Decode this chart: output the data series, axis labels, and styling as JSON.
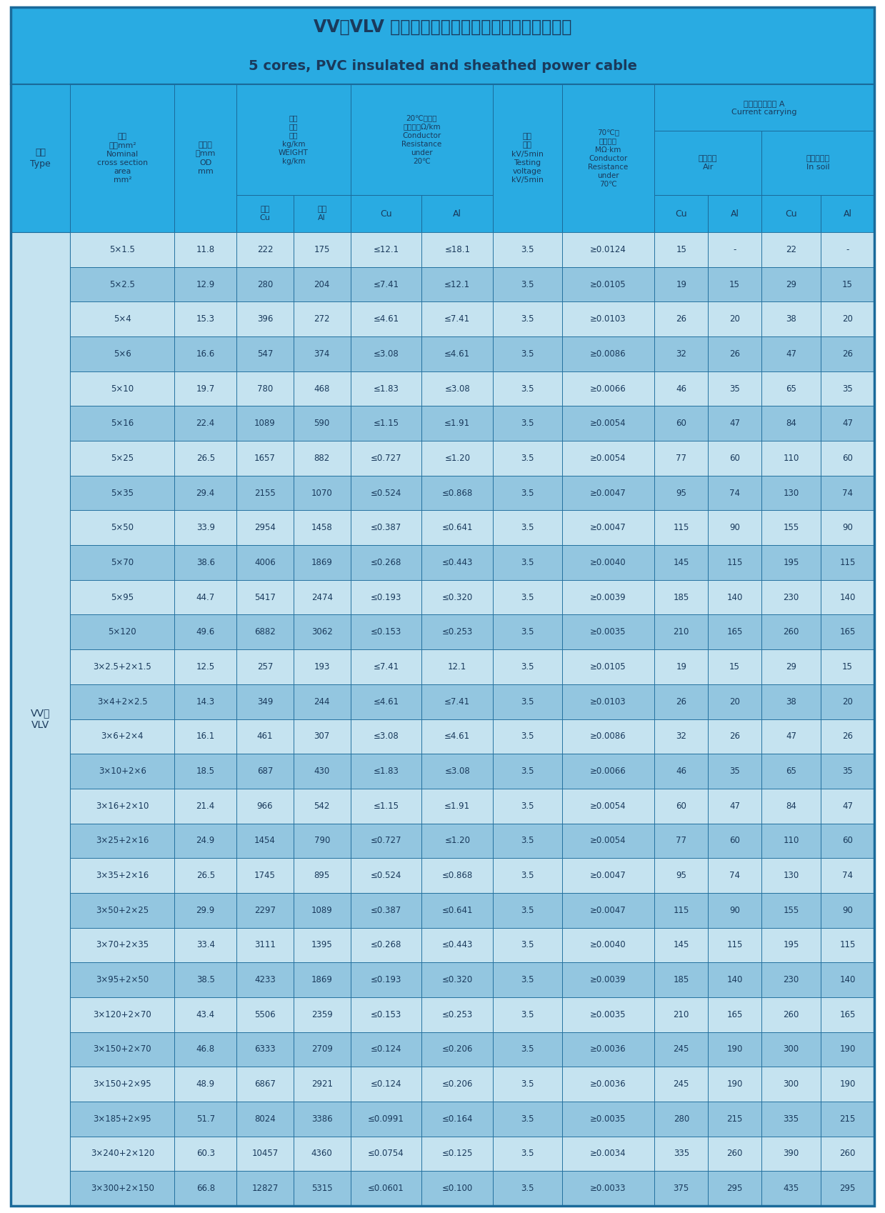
{
  "title_cn": "VV、VLV 五芯聚氯乙烯绣缘聚氯乙烯护套电力电缆",
  "title_en": "5 cores, PVC insulated and sheathed power cable",
  "header_bg": "#29ABE2",
  "row_bg_dark": "#93C6E0",
  "row_bg_light": "#C5E3F0",
  "border_color": "#1A6A9A",
  "text_color_dark": "#1A3A5C",
  "rows": [
    [
      "5×1.5",
      "11.8",
      "222",
      "175",
      "≤12.1",
      "≤18.1",
      "3.5",
      "≥0.0124",
      "15",
      "-",
      "22",
      "-"
    ],
    [
      "5×2.5",
      "12.9",
      "280",
      "204",
      "≤7.41",
      "≤12.1",
      "3.5",
      "≥0.0105",
      "19",
      "15",
      "29",
      "15"
    ],
    [
      "5×4",
      "15.3",
      "396",
      "272",
      "≤4.61",
      "≤7.41",
      "3.5",
      "≥0.0103",
      "26",
      "20",
      "38",
      "20"
    ],
    [
      "5×6",
      "16.6",
      "547",
      "374",
      "≤3.08",
      "≤4.61",
      "3.5",
      "≥0.0086",
      "32",
      "26",
      "47",
      "26"
    ],
    [
      "5×10",
      "19.7",
      "780",
      "468",
      "≤1.83",
      "≤3.08",
      "3.5",
      "≥0.0066",
      "46",
      "35",
      "65",
      "35"
    ],
    [
      "5×16",
      "22.4",
      "1089",
      "590",
      "≤1.15",
      "≤1.91",
      "3.5",
      "≥0.0054",
      "60",
      "47",
      "84",
      "47"
    ],
    [
      "5×25",
      "26.5",
      "1657",
      "882",
      "≤0.727",
      "≤1.20",
      "3.5",
      "≥0.0054",
      "77",
      "60",
      "110",
      "60"
    ],
    [
      "5×35",
      "29.4",
      "2155",
      "1070",
      "≤0.524",
      "≤0.868",
      "3.5",
      "≥0.0047",
      "95",
      "74",
      "130",
      "74"
    ],
    [
      "5×50",
      "33.9",
      "2954",
      "1458",
      "≤0.387",
      "≤0.641",
      "3.5",
      "≥0.0047",
      "115",
      "90",
      "155",
      "90"
    ],
    [
      "5×70",
      "38.6",
      "4006",
      "1869",
      "≤0.268",
      "≤0.443",
      "3.5",
      "≥0.0040",
      "145",
      "115",
      "195",
      "115"
    ],
    [
      "5×95",
      "44.7",
      "5417",
      "2474",
      "≤0.193",
      "≤0.320",
      "3.5",
      "≥0.0039",
      "185",
      "140",
      "230",
      "140"
    ],
    [
      "5×120",
      "49.6",
      "6882",
      "3062",
      "≤0.153",
      "≤0.253",
      "3.5",
      "≥0.0035",
      "210",
      "165",
      "260",
      "165"
    ],
    [
      "3×2.5+2×1.5",
      "12.5",
      "257",
      "193",
      "≤7.41",
      "12.1",
      "3.5",
      "≥0.0105",
      "19",
      "15",
      "29",
      "15"
    ],
    [
      "3×4+2×2.5",
      "14.3",
      "349",
      "244",
      "≤4.61",
      "≤7.41",
      "3.5",
      "≥0.0103",
      "26",
      "20",
      "38",
      "20"
    ],
    [
      "3×6+2×4",
      "16.1",
      "461",
      "307",
      "≤3.08",
      "≤4.61",
      "3.5",
      "≥0.0086",
      "32",
      "26",
      "47",
      "26"
    ],
    [
      "3×10+2×6",
      "18.5",
      "687",
      "430",
      "≤1.83",
      "≤3.08",
      "3.5",
      "≥0.0066",
      "46",
      "35",
      "65",
      "35"
    ],
    [
      "3×16+2×10",
      "21.4",
      "966",
      "542",
      "≤1.15",
      "≤1.91",
      "3.5",
      "≥0.0054",
      "60",
      "47",
      "84",
      "47"
    ],
    [
      "3×25+2×16",
      "24.9",
      "1454",
      "790",
      "≤0.727",
      "≤1.20",
      "3.5",
      "≥0.0054",
      "77",
      "60",
      "110",
      "60"
    ],
    [
      "3×35+2×16",
      "26.5",
      "1745",
      "895",
      "≤0.524",
      "≤0.868",
      "3.5",
      "≥0.0047",
      "95",
      "74",
      "130",
      "74"
    ],
    [
      "3×50+2×25",
      "29.9",
      "2297",
      "1089",
      "≤0.387",
      "≤0.641",
      "3.5",
      "≥0.0047",
      "115",
      "90",
      "155",
      "90"
    ],
    [
      "3×70+2×35",
      "33.4",
      "3111",
      "1395",
      "≤0.268",
      "≤0.443",
      "3.5",
      "≥0.0040",
      "145",
      "115",
      "195",
      "115"
    ],
    [
      "3×95+2×50",
      "38.5",
      "4233",
      "1869",
      "≤0.193",
      "≤0.320",
      "3.5",
      "≥0.0039",
      "185",
      "140",
      "230",
      "140"
    ],
    [
      "3×120+2×70",
      "43.4",
      "5506",
      "2359",
      "≤0.153",
      "≤0.253",
      "3.5",
      "≥0.0035",
      "210",
      "165",
      "260",
      "165"
    ],
    [
      "3×150+2×70",
      "46.8",
      "6333",
      "2709",
      "≤0.124",
      "≤0.206",
      "3.5",
      "≥0.0036",
      "245",
      "190",
      "300",
      "190"
    ],
    [
      "3×150+2×95",
      "48.9",
      "6867",
      "2921",
      "≤0.124",
      "≤0.206",
      "3.5",
      "≥0.0036",
      "245",
      "190",
      "300",
      "190"
    ],
    [
      "3×185+2×95",
      "51.7",
      "8024",
      "3386",
      "≤0.0991",
      "≤0.164",
      "3.5",
      "≥0.0035",
      "280",
      "215",
      "335",
      "215"
    ],
    [
      "3×240+2×120",
      "60.3",
      "10457",
      "4360",
      "≤0.0754",
      "≤0.125",
      "3.5",
      "≥0.0034",
      "335",
      "260",
      "390",
      "260"
    ],
    [
      "3×300+2×150",
      "66.8",
      "12827",
      "5315",
      "≤0.0601",
      "≤0.100",
      "3.5",
      "≥0.0033",
      "375",
      "295",
      "435",
      "295"
    ]
  ]
}
